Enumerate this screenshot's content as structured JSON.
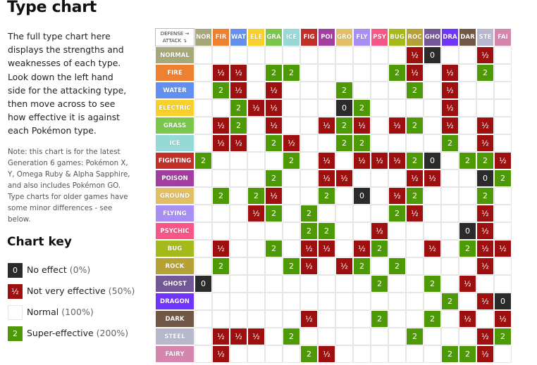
{
  "title": "Type chart",
  "intro": "The full type chart here displays the strengths and weaknesses of each type. Look down the left hand side for the attacking type, then move across to see how effective it is against each Pokémon type.",
  "note": "Note: this chart is for the latest Generation 6 games: Pokémon X, Y, Omega Ruby & Alpha Sapphire, and also includes Pokémon GO. Type charts for older games have some minor differences - see below.",
  "key": {
    "title": "Chart key",
    "items": [
      {
        "symbol": "0",
        "kind": "z",
        "label": "No effect",
        "pct": "(0%)"
      },
      {
        "symbol": "½",
        "kind": "h",
        "label": "Not very effective",
        "pct": "(50%)"
      },
      {
        "symbol": "",
        "kind": "n",
        "label": "Normal",
        "pct": "(100%)"
      },
      {
        "symbol": "2",
        "kind": "s",
        "label": "Super-effective",
        "pct": "(200%)"
      }
    ]
  },
  "corner": {
    "top": "DEFENSE →",
    "bottom": "ATTACK ↴"
  },
  "columns": [
    {
      "abbr": "NOR",
      "color": "#a8a77a"
    },
    {
      "abbr": "FIR",
      "color": "#ee8130"
    },
    {
      "abbr": "WAT",
      "color": "#6390f0"
    },
    {
      "abbr": "ELE",
      "color": "#f7d02c"
    },
    {
      "abbr": "GRA",
      "color": "#7ac74c"
    },
    {
      "abbr": "ICE",
      "color": "#96d9d6"
    },
    {
      "abbr": "FIG",
      "color": "#c22e28"
    },
    {
      "abbr": "POI",
      "color": "#a33ea1"
    },
    {
      "abbr": "GRO",
      "color": "#e2bf65"
    },
    {
      "abbr": "FLY",
      "color": "#a98ff3"
    },
    {
      "abbr": "PSY",
      "color": "#f95587"
    },
    {
      "abbr": "BUG",
      "color": "#a6b91a"
    },
    {
      "abbr": "ROC",
      "color": "#b6a136"
    },
    {
      "abbr": "GHO",
      "color": "#735797"
    },
    {
      "abbr": "DRA",
      "color": "#6f35fc"
    },
    {
      "abbr": "DAR",
      "color": "#705746"
    },
    {
      "abbr": "STE",
      "color": "#b7b7ce"
    },
    {
      "abbr": "FAI",
      "color": "#d685ad"
    }
  ],
  "rows": [
    {
      "name": "NORMAL",
      "color": "#a8a77a",
      "cells": [
        "",
        "",
        "",
        "",
        "",
        "",
        "",
        "",
        "",
        "",
        "",
        "",
        "½",
        "0",
        "",
        "",
        "½",
        ""
      ]
    },
    {
      "name": "FIRE",
      "color": "#ee8130",
      "cells": [
        "",
        "½",
        "½",
        "",
        "2",
        "2",
        "",
        "",
        "",
        "",
        "",
        "2",
        "½",
        "",
        "½",
        "",
        "2",
        ""
      ]
    },
    {
      "name": "WATER",
      "color": "#6390f0",
      "cells": [
        "",
        "2",
        "½",
        "",
        "½",
        "",
        "",
        "",
        "2",
        "",
        "",
        "",
        "2",
        "",
        "½",
        "",
        "",
        ""
      ]
    },
    {
      "name": "ELECTRIC",
      "color": "#f7d02c",
      "cells": [
        "",
        "",
        "2",
        "½",
        "½",
        "",
        "",
        "",
        "0",
        "2",
        "",
        "",
        "",
        "",
        "½",
        "",
        "",
        ""
      ]
    },
    {
      "name": "GRASS",
      "color": "#7ac74c",
      "cells": [
        "",
        "½",
        "2",
        "",
        "½",
        "",
        "",
        "½",
        "2",
        "½",
        "",
        "½",
        "2",
        "",
        "½",
        "",
        "½",
        ""
      ]
    },
    {
      "name": "ICE",
      "color": "#96d9d6",
      "cells": [
        "",
        "½",
        "½",
        "",
        "2",
        "½",
        "",
        "",
        "2",
        "2",
        "",
        "",
        "",
        "",
        "2",
        "",
        "½",
        ""
      ]
    },
    {
      "name": "FIGHTING",
      "color": "#c22e28",
      "cells": [
        "2",
        "",
        "",
        "",
        "",
        "2",
        "",
        "½",
        "",
        "½",
        "½",
        "½",
        "2",
        "0",
        "",
        "2",
        "2",
        "½"
      ]
    },
    {
      "name": "POISON",
      "color": "#a33ea1",
      "cells": [
        "",
        "",
        "",
        "",
        "2",
        "",
        "",
        "½",
        "½",
        "",
        "",
        "",
        "½",
        "½",
        "",
        "",
        "0",
        "2"
      ]
    },
    {
      "name": "GROUND",
      "color": "#e2bf65",
      "cells": [
        "",
        "2",
        "",
        "2",
        "½",
        "",
        "",
        "2",
        "",
        "0",
        "",
        "½",
        "2",
        "",
        "",
        "",
        "2",
        ""
      ]
    },
    {
      "name": "FLYING",
      "color": "#a98ff3",
      "cells": [
        "",
        "",
        "",
        "½",
        "2",
        "",
        "2",
        "",
        "",
        "",
        "",
        "2",
        "½",
        "",
        "",
        "",
        "½",
        ""
      ]
    },
    {
      "name": "PSYCHIC",
      "color": "#f95587",
      "cells": [
        "",
        "",
        "",
        "",
        "",
        "",
        "2",
        "2",
        "",
        "",
        "½",
        "",
        "",
        "",
        "",
        "0",
        "½",
        ""
      ]
    },
    {
      "name": "BUG",
      "color": "#a6b91a",
      "cells": [
        "",
        "½",
        "",
        "",
        "2",
        "",
        "½",
        "½",
        "",
        "½",
        "2",
        "",
        "",
        "½",
        "",
        "2",
        "½",
        "½"
      ]
    },
    {
      "name": "ROCK",
      "color": "#b6a136",
      "cells": [
        "",
        "2",
        "",
        "",
        "",
        "2",
        "½",
        "",
        "½",
        "2",
        "",
        "2",
        "",
        "",
        "",
        "",
        "½",
        ""
      ]
    },
    {
      "name": "GHOST",
      "color": "#735797",
      "cells": [
        "0",
        "",
        "",
        "",
        "",
        "",
        "",
        "",
        "",
        "",
        "2",
        "",
        "",
        "2",
        "",
        "½",
        "",
        ""
      ]
    },
    {
      "name": "DRAGON",
      "color": "#6f35fc",
      "cells": [
        "",
        "",
        "",
        "",
        "",
        "",
        "",
        "",
        "",
        "",
        "",
        "",
        "",
        "",
        "2",
        "",
        "½",
        "0"
      ]
    },
    {
      "name": "DARK",
      "color": "#705746",
      "cells": [
        "",
        "",
        "",
        "",
        "",
        "",
        "½",
        "",
        "",
        "",
        "2",
        "",
        "",
        "2",
        "",
        "½",
        "",
        "½"
      ]
    },
    {
      "name": "STEEL",
      "color": "#b7b7ce",
      "cells": [
        "",
        "½",
        "½",
        "½",
        "",
        "2",
        "",
        "",
        "",
        "",
        "",
        "",
        "2",
        "",
        "",
        "",
        "½",
        "2"
      ]
    },
    {
      "name": "FAIRY",
      "color": "#d685ad",
      "cells": [
        "",
        "½",
        "",
        "",
        "",
        "",
        "2",
        "½",
        "",
        "",
        "",
        "",
        "",
        "",
        "2",
        "2",
        "½",
        ""
      ]
    }
  ]
}
